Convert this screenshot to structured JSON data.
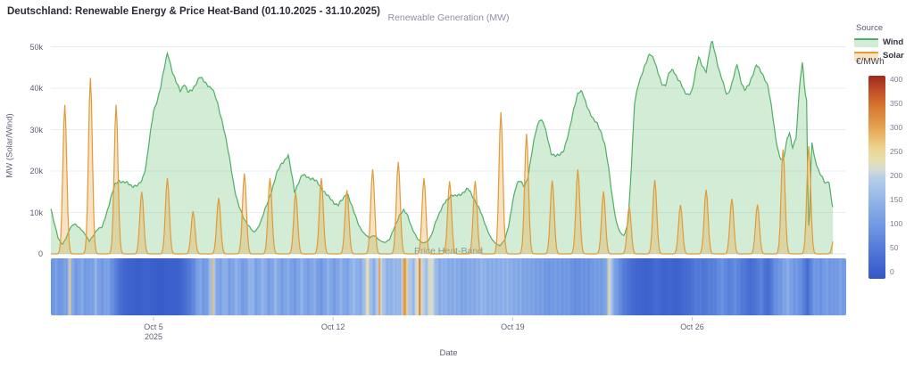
{
  "title": "Deutschland: Renewable Energy & Price Heat-Band (01.10.2025 - 31.10.2025)",
  "chart_data": {
    "type": "area",
    "title": "Deutschland: Renewable Energy & Price Heat-Band (01.10.2025 - 31.10.2025)",
    "subtitle_top": "Renewable Generation (MW)",
    "subtitle_band": "Price Heat-Band",
    "xlabel": "Date",
    "ylabel": "MW (Solar/Wind)",
    "x_range_days": 31,
    "x_start": "2025-10-01",
    "data_end_day": 30.48,
    "ylim": [
      0,
      52500
    ],
    "grid": true,
    "y_ticks": [
      {
        "v": 0,
        "label": "0"
      },
      {
        "v": 10000,
        "label": "10k"
      },
      {
        "v": 20000,
        "label": "20k"
      },
      {
        "v": 30000,
        "label": "30k"
      },
      {
        "v": 40000,
        "label": "40k"
      },
      {
        "v": 50000,
        "label": "50k"
      }
    ],
    "x_ticks": [
      {
        "day": 4,
        "label": "Oct 5",
        "sub": "2025"
      },
      {
        "day": 11,
        "label": "Oct 12",
        "sub": ""
      },
      {
        "day": 18,
        "label": "Oct 19",
        "sub": ""
      },
      {
        "day": 25,
        "label": "Oct 26",
        "sub": ""
      }
    ],
    "legend": {
      "title": "Source",
      "position": "top-right",
      "items": [
        {
          "label": "Wind",
          "line_color": "#4fae63",
          "fill_color": "rgba(92,185,105,0.28)"
        },
        {
          "label": "Solar",
          "line_color": "#e09b3a",
          "fill_color": "rgba(234,164,61,0.32)"
        }
      ]
    },
    "colorbar": {
      "title": "€/MWh",
      "min": 0,
      "max": 400,
      "ticks": [
        0,
        50,
        100,
        150,
        200,
        250,
        300,
        350,
        400
      ],
      "stops": [
        [
          0,
          "#3558c8"
        ],
        [
          50,
          "#4e74d6"
        ],
        [
          100,
          "#6e96e2"
        ],
        [
          150,
          "#8fb2e9"
        ],
        [
          200,
          "#b8cfe9"
        ],
        [
          215,
          "#d6dcd4"
        ],
        [
          235,
          "#e8dfae"
        ],
        [
          260,
          "#ecd28a"
        ],
        [
          300,
          "#e4a14e"
        ],
        [
          340,
          "#d67730"
        ],
        [
          370,
          "#c24e26"
        ],
        [
          400,
          "#9c2b1e"
        ]
      ]
    },
    "series": [
      {
        "name": "Wind",
        "unit": "MW",
        "points_day_mw": [
          0,
          10500,
          0.15,
          7000,
          0.3,
          3500,
          0.45,
          2200,
          0.6,
          4000,
          0.75,
          6500,
          0.9,
          7200,
          1.05,
          6500,
          1.2,
          5800,
          1.35,
          4500,
          1.5,
          3000,
          1.65,
          4500,
          1.8,
          6000,
          2.0,
          6500,
          2.2,
          10500,
          2.35,
          13500,
          2.5,
          16500,
          2.65,
          17800,
          2.8,
          17500,
          3.0,
          17200,
          3.2,
          16500,
          3.4,
          16200,
          3.55,
          17500,
          3.7,
          21000,
          3.85,
          28000,
          4.0,
          34500,
          4.15,
          37500,
          4.3,
          41000,
          4.45,
          45500,
          4.55,
          48500,
          4.65,
          46000,
          4.75,
          43500,
          4.9,
          41000,
          5.05,
          39500,
          5.2,
          41500,
          5.35,
          39000,
          5.5,
          39500,
          5.65,
          41000,
          5.8,
          42500,
          5.95,
          41500,
          6.1,
          41000,
          6.3,
          40000,
          6.5,
          36500,
          6.7,
          31500,
          6.85,
          26500,
          7.0,
          21500,
          7.15,
          16000,
          7.3,
          12000,
          7.5,
          9000,
          7.7,
          7000,
          7.9,
          5000,
          8.05,
          6000,
          8.2,
          8000,
          8.4,
          11500,
          8.6,
          15500,
          8.8,
          19500,
          9.0,
          21800,
          9.25,
          23500,
          9.4,
          18500,
          9.5,
          15000,
          9.65,
          17500,
          9.8,
          19200,
          10.0,
          18700,
          10.2,
          18000,
          10.4,
          16800,
          10.6,
          15500,
          10.8,
          14000,
          11.0,
          12800,
          11.2,
          11800,
          11.4,
          13000,
          11.55,
          14800,
          11.7,
          12000,
          11.85,
          9500,
          12.0,
          7200,
          12.2,
          5000,
          12.4,
          3800,
          12.6,
          4500,
          12.8,
          3200,
          13.0,
          2800,
          13.2,
          3500,
          13.4,
          6500,
          13.6,
          9500,
          13.75,
          10200,
          13.9,
          9200,
          14.1,
          6000,
          14.3,
          3500,
          14.5,
          2700,
          14.7,
          3000,
          14.85,
          4500,
          15.0,
          7800,
          15.2,
          10500,
          15.4,
          13000,
          15.6,
          14500,
          15.75,
          13800,
          15.9,
          14000,
          16.1,
          14800,
          16.25,
          15500,
          16.4,
          14500,
          16.55,
          13000,
          16.7,
          11000,
          16.85,
          8500,
          17.0,
          6000,
          17.15,
          3800,
          17.3,
          2600,
          17.5,
          2000,
          17.7,
          3500,
          17.85,
          7000,
          18.0,
          13000,
          18.15,
          16500,
          18.3,
          17300,
          18.45,
          16200,
          18.6,
          18500,
          18.75,
          24500,
          18.9,
          30000,
          19.05,
          32800,
          19.2,
          31500,
          19.35,
          28000,
          19.5,
          24200,
          19.65,
          23400,
          19.8,
          23800,
          20.0,
          25500,
          20.2,
          29500,
          20.4,
          35500,
          20.55,
          38800,
          20.7,
          38800,
          20.85,
          36500,
          21.0,
          34500,
          21.15,
          32500,
          21.3,
          31500,
          21.45,
          29500,
          21.6,
          26000,
          21.75,
          20000,
          21.9,
          13000,
          22.05,
          7500,
          22.2,
          5000,
          22.35,
          4500,
          22.5,
          8000,
          22.62,
          20000,
          22.75,
          36000,
          22.9,
          41000,
          23.05,
          43500,
          23.2,
          46000,
          23.35,
          48800,
          23.5,
          47500,
          23.65,
          44000,
          23.8,
          41000,
          23.95,
          40500,
          24.1,
          43500,
          24.25,
          44200,
          24.4,
          43000,
          24.55,
          41500,
          24.7,
          39000,
          24.85,
          38500,
          25.0,
          39500,
          25.1,
          42500,
          25.25,
          47300,
          25.4,
          45500,
          25.55,
          44000,
          25.7,
          50000,
          25.78,
          51800,
          25.9,
          48500,
          26.05,
          44000,
          26.2,
          41000,
          26.35,
          38200,
          26.5,
          40000,
          26.65,
          43500,
          26.75,
          46000,
          26.9,
          42000,
          27.05,
          39500,
          27.2,
          40500,
          27.35,
          43000,
          27.5,
          45500,
          27.65,
          44000,
          27.8,
          42800,
          27.95,
          41000,
          28.1,
          35000,
          28.25,
          28000,
          28.4,
          23500,
          28.55,
          22000,
          28.7,
          27500,
          28.8,
          29500,
          28.9,
          25800,
          29.05,
          28000,
          29.2,
          42000,
          29.3,
          46700,
          29.4,
          39000,
          29.47,
          36500,
          29.52,
          5500,
          29.58,
          9000,
          29.65,
          27300,
          29.75,
          23500,
          29.9,
          20500,
          30.05,
          18500,
          30.2,
          17000,
          30.32,
          18300,
          30.4,
          14500,
          30.48,
          11200
        ]
      },
      {
        "name": "Solar",
        "unit": "MW",
        "daily_peaks_mw": [
          36000,
          42500,
          36000,
          15000,
          18300,
          10300,
          13500,
          19400,
          18300,
          14800,
          18300,
          15400,
          20400,
          22200,
          18300,
          17500,
          17600,
          34200,
          29000,
          17700,
          20400,
          15100,
          11400,
          17800,
          11800,
          15500,
          13300,
          11900,
          25200,
          26000,
          4200
        ],
        "daylight": {
          "start_h": 5.5,
          "peak_h": 13.0,
          "end_h": 20.5,
          "sigma_h": 2.55
        }
      }
    ],
    "price_band": {
      "name": "Price",
      "unit": "€/MWh",
      "points_day_eur": [
        0,
        85,
        0.2,
        115,
        0.35,
        100,
        0.5,
        120,
        0.62,
        105,
        0.7,
        170,
        0.73,
        300,
        0.78,
        170,
        0.9,
        120,
        1.05,
        105,
        1.2,
        130,
        1.35,
        112,
        1.5,
        122,
        1.62,
        108,
        1.75,
        148,
        1.9,
        118,
        2.05,
        108,
        2.2,
        122,
        2.35,
        100,
        2.5,
        78,
        2.64,
        45,
        2.8,
        30,
        3.0,
        22,
        3.2,
        14,
        3.4,
        9,
        3.6,
        16,
        3.8,
        20,
        4.0,
        12,
        4.2,
        7,
        4.4,
        10,
        4.6,
        16,
        4.8,
        13,
        5.0,
        20,
        5.15,
        30,
        5.32,
        48,
        5.5,
        75,
        5.65,
        95,
        5.8,
        128,
        5.95,
        112,
        6.1,
        118,
        6.25,
        170,
        6.3,
        298,
        6.36,
        180,
        6.5,
        135,
        6.65,
        122,
        6.8,
        148,
        6.95,
        118,
        7.1,
        132,
        7.25,
        142,
        7.4,
        120,
        7.55,
        118,
        7.7,
        138,
        7.85,
        152,
        8.0,
        122,
        8.15,
        138,
        8.3,
        146,
        8.45,
        118,
        8.6,
        128,
        8.75,
        148,
        8.9,
        124,
        9.05,
        118,
        9.2,
        138,
        9.35,
        116,
        9.5,
        112,
        9.65,
        132,
        9.8,
        142,
        9.95,
        118,
        10.1,
        128,
        10.25,
        136,
        10.4,
        112,
        10.55,
        108,
        10.7,
        132,
        10.85,
        138,
        11.0,
        116,
        11.15,
        128,
        11.3,
        144,
        11.45,
        122,
        11.6,
        132,
        11.75,
        158,
        11.9,
        142,
        12.05,
        138,
        12.2,
        172,
        12.35,
        225,
        12.45,
        168,
        12.6,
        152,
        12.74,
        200,
        12.8,
        310,
        12.86,
        200,
        13.0,
        168,
        13.15,
        158,
        13.3,
        150,
        13.45,
        155,
        13.6,
        162,
        13.72,
        210,
        13.78,
        408,
        13.85,
        230,
        14.0,
        182,
        14.15,
        172,
        14.3,
        240,
        14.37,
        308,
        14.45,
        215,
        14.6,
        178,
        14.73,
        210,
        14.79,
        245,
        14.88,
        195,
        15.0,
        162,
        15.15,
        148,
        15.3,
        152,
        15.45,
        128,
        15.6,
        142,
        15.75,
        150,
        15.9,
        128,
        16.05,
        122,
        16.2,
        146,
        16.35,
        132,
        16.5,
        128,
        16.65,
        152,
        16.8,
        158,
        16.95,
        132,
        17.1,
        142,
        17.25,
        152,
        17.4,
        132,
        17.55,
        138,
        17.7,
        158,
        17.85,
        148,
        18.0,
        128,
        18.15,
        138,
        18.3,
        144,
        18.45,
        116,
        18.6,
        126,
        18.75,
        134,
        18.9,
        114,
        19.05,
        108,
        19.2,
        122,
        19.35,
        102,
        19.5,
        98,
        19.65,
        112,
        19.8,
        118,
        19.95,
        96,
        20.1,
        104,
        20.25,
        108,
        20.4,
        88,
        20.55,
        84,
        20.7,
        98,
        20.85,
        102,
        21.0,
        88,
        21.15,
        108,
        21.3,
        122,
        21.45,
        108,
        21.6,
        112,
        21.72,
        180,
        21.78,
        308,
        21.84,
        180,
        22.0,
        112,
        22.15,
        92,
        22.3,
        72,
        22.45,
        52,
        22.6,
        38,
        22.75,
        30,
        22.9,
        25,
        23.05,
        20,
        23.2,
        16,
        23.35,
        22,
        23.5,
        28,
        23.65,
        32,
        23.8,
        24,
        23.95,
        20,
        24.1,
        26,
        24.25,
        22,
        24.4,
        16,
        24.55,
        24,
        24.7,
        32,
        24.85,
        40,
        25.0,
        46,
        25.15,
        56,
        25.3,
        62,
        25.45,
        52,
        25.6,
        58,
        25.75,
        66,
        25.9,
        74,
        26.05,
        82,
        26.2,
        90,
        26.35,
        78,
        26.5,
        70,
        26.65,
        82,
        26.8,
        76,
        26.95,
        62,
        27.1,
        48,
        27.24,
        36,
        27.4,
        48,
        27.55,
        58,
        27.7,
        68,
        27.85,
        46,
        28.0,
        42,
        28.15,
        72,
        28.3,
        95,
        28.45,
        112,
        28.6,
        124,
        28.75,
        132,
        28.9,
        118,
        29.05,
        108,
        29.2,
        88,
        29.35,
        72,
        29.5,
        38,
        29.62,
        70,
        29.75,
        98,
        29.9,
        108,
        30.05,
        96,
        30.2,
        112,
        30.35,
        102,
        30.5,
        114,
        30.65,
        104,
        30.8,
        118,
        30.95,
        110
      ]
    }
  },
  "colors": {
    "background": "#ffffff",
    "grid": "#ebecf2",
    "axis_line": "#dfe0ea",
    "tick_text": "#5c5f77",
    "subtitle_text": "#8d90a6",
    "title_text": "#2c2c36"
  }
}
